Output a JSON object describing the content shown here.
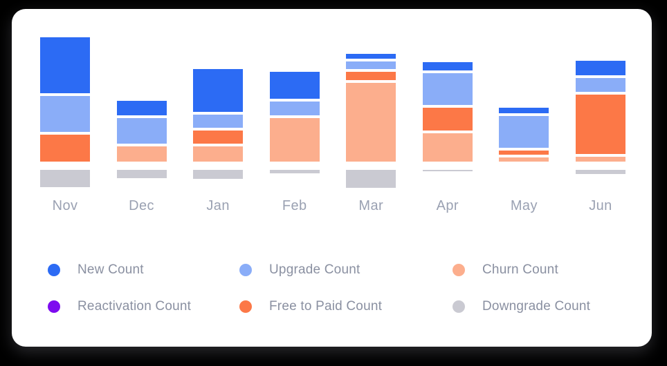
{
  "colors": {
    "page_background": "#000000",
    "card_background": "#FFFFFF",
    "month_label": "#9AA1B2",
    "legend_text": "#8A90A1"
  },
  "chart_data": {
    "type": "bar",
    "variant": "stacked",
    "title": "",
    "categories": [
      "Nov",
      "Dec",
      "Jan",
      "Feb",
      "Mar",
      "Apr",
      "May",
      "Jun"
    ],
    "series": [
      {
        "name": "New Count",
        "color": "#2C6BF4",
        "values": [
          81,
          21,
          62,
          39,
          7,
          12,
          8,
          21
        ]
      },
      {
        "name": "Upgrade Count",
        "color": "#8AADF8",
        "values": [
          52,
          37,
          19,
          20,
          11,
          46,
          46,
          20
        ]
      },
      {
        "name": "Churn Count",
        "color": "#FCAE8D",
        "values": [
          0,
          22,
          22,
          63,
          114,
          41,
          6,
          7
        ]
      },
      {
        "name": "Reactivation Count",
        "color": "#7D0BEF",
        "values": [
          0,
          0,
          0,
          0,
          0,
          0,
          0,
          0
        ]
      },
      {
        "name": "Free to Paid Count",
        "color": "#FC7847",
        "values": [
          39,
          0,
          19,
          0,
          12,
          33,
          6,
          86
        ]
      },
      {
        "name": "Downgrade Count",
        "color": "#CACAD2",
        "values": [
          25,
          12,
          13,
          5,
          26,
          2,
          0,
          6
        ]
      }
    ],
    "stack_order_top_to_bottom": [
      "New Count",
      "Upgrade Count",
      "Free to Paid Count",
      "Churn Count"
    ],
    "below_axis_series": [
      "Downgrade Count"
    ],
    "value_axis_visible": false,
    "gridlines": false,
    "legend_position": "bottom",
    "units": "estimated relative counts (no numeric axis shown)"
  },
  "legend": {
    "items": [
      {
        "label": "New Count",
        "color": "#2C6BF4"
      },
      {
        "label": "Upgrade Count",
        "color": "#8AADF8"
      },
      {
        "label": "Churn Count",
        "color": "#FCAE8D"
      },
      {
        "label": "Reactivation Count",
        "color": "#7D0BEF"
      },
      {
        "label": "Free to Paid Count",
        "color": "#FC7847"
      },
      {
        "label": "Downgrade Count",
        "color": "#CACAD2"
      }
    ]
  }
}
